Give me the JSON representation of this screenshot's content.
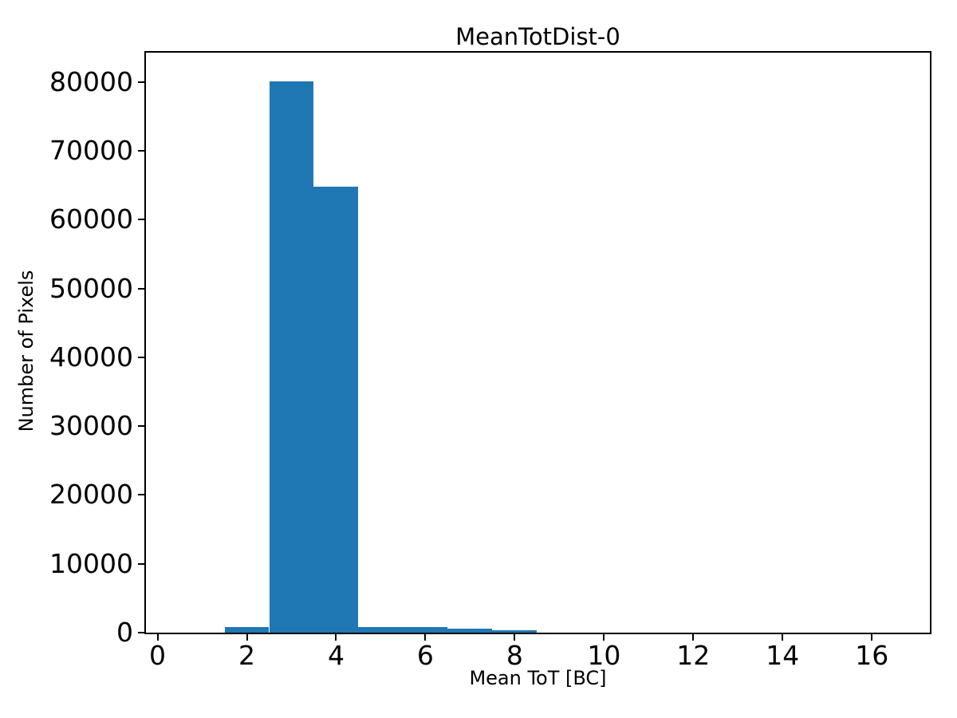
{
  "chart_data": {
    "type": "bar",
    "title": "MeanTotDist-0",
    "xlabel": "Mean ToT [BC]",
    "ylabel": "Number of Pixels",
    "bar_color": "#1f77b4",
    "axis_color": "#000000",
    "background": "#ffffff",
    "grid": false,
    "legend": null,
    "xlim": [
      -0.26,
      17.3
    ],
    "ylim": [
      0,
      84250
    ],
    "xticks": [
      0,
      2,
      4,
      6,
      8,
      10,
      12,
      14,
      16
    ],
    "yticks": [
      0,
      10000,
      20000,
      30000,
      40000,
      50000,
      60000,
      70000,
      80000
    ],
    "bin_width": 1,
    "bins": [
      {
        "x0": 1.5,
        "x1": 2.5,
        "count": 780
      },
      {
        "x0": 2.5,
        "x1": 3.5,
        "count": 80100
      },
      {
        "x0": 3.5,
        "x1": 4.5,
        "count": 64800
      },
      {
        "x0": 4.5,
        "x1": 5.5,
        "count": 860
      },
      {
        "x0": 5.5,
        "x1": 6.5,
        "count": 800
      },
      {
        "x0": 6.5,
        "x1": 7.5,
        "count": 580
      },
      {
        "x0": 7.5,
        "x1": 8.5,
        "count": 310
      }
    ]
  }
}
